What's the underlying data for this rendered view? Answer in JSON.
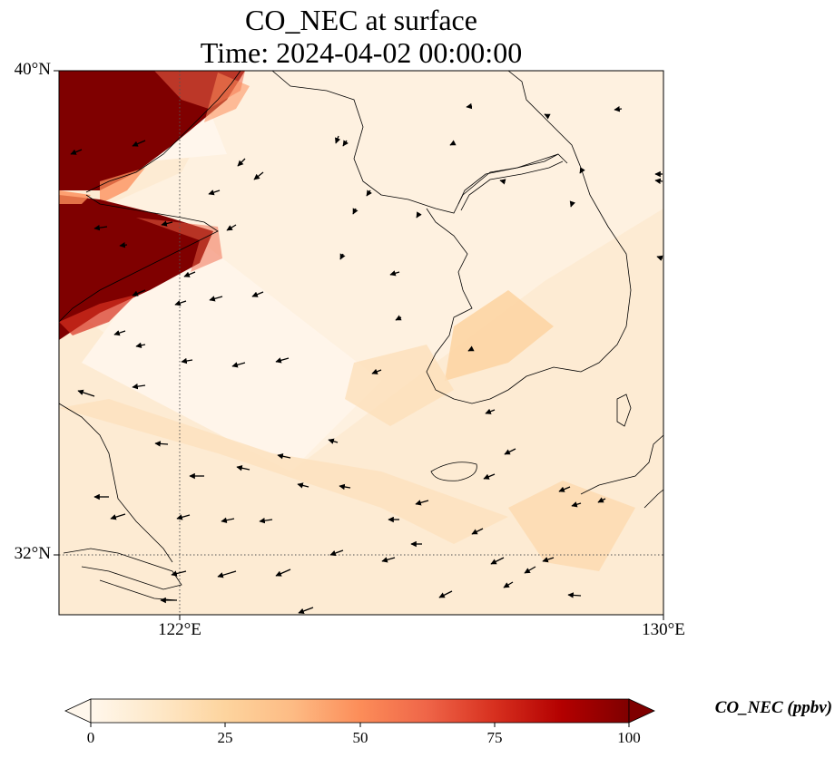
{
  "title": {
    "line1": "CO_NEC at surface",
    "line2": "Time: 2024-04-02 00:00:00"
  },
  "map": {
    "variable": "CO_NEC",
    "level": "surface",
    "extent": {
      "lon_min": 120,
      "lon_max": 130,
      "lat_min": 31,
      "lat_max": 40
    },
    "gridlines": {
      "lon": [
        122
      ],
      "lat": [
        32
      ]
    },
    "lat_ticks": [
      "40°N",
      "32°N"
    ],
    "lon_ticks": [
      "122°E",
      "130°E"
    ],
    "features": [
      "coastline",
      "wind-vectors",
      "concentration-field"
    ]
  },
  "colorbar": {
    "label": "CO_NEC (ppbv)",
    "colormap": "OrRd",
    "min": 0,
    "max": 100,
    "ticks": [
      "0",
      "25",
      "50",
      "75",
      "100"
    ],
    "extend": "both",
    "colors": [
      "#fff7ec",
      "#fee8c8",
      "#fdd49e",
      "#fdbb84",
      "#fc8d59",
      "#ef6548",
      "#d7301f",
      "#b30000",
      "#7f0000"
    ]
  }
}
